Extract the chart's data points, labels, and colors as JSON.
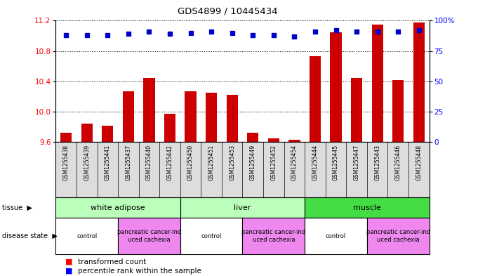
{
  "title": "GDS4899 / 10445434",
  "samples": [
    "GSM1255438",
    "GSM1255439",
    "GSM1255441",
    "GSM1255437",
    "GSM1255440",
    "GSM1255442",
    "GSM1255450",
    "GSM1255451",
    "GSM1255453",
    "GSM1255449",
    "GSM1255452",
    "GSM1255454",
    "GSM1255444",
    "GSM1255445",
    "GSM1255447",
    "GSM1255443",
    "GSM1255446",
    "GSM1255448"
  ],
  "transformed_count": [
    9.72,
    9.84,
    9.82,
    10.27,
    10.45,
    9.97,
    10.27,
    10.25,
    10.22,
    9.72,
    9.65,
    9.63,
    10.73,
    11.05,
    10.45,
    11.15,
    10.42,
    11.18
  ],
  "percentile_rank": [
    88,
    88,
    88,
    89,
    91,
    89,
    90,
    91,
    90,
    88,
    88,
    87,
    91,
    92,
    91,
    91,
    91,
    92
  ],
  "ylim_left": [
    9.6,
    11.2
  ],
  "ylim_right": [
    0,
    100
  ],
  "yticks_left": [
    9.6,
    10.0,
    10.4,
    10.8,
    11.2
  ],
  "yticks_right": [
    0,
    25,
    50,
    75,
    100
  ],
  "bar_color": "#cc0000",
  "dot_color": "#0000cc",
  "tissue_labels": [
    "white adipose",
    "liver",
    "muscle"
  ],
  "tissue_ranges": [
    [
      0,
      6
    ],
    [
      6,
      12
    ],
    [
      12,
      18
    ]
  ],
  "tissue_colors": [
    "#bbffbb",
    "#bbffbb",
    "#44dd44"
  ],
  "disease_ranges": [
    [
      0,
      3
    ],
    [
      3,
      6
    ],
    [
      6,
      9
    ],
    [
      9,
      12
    ],
    [
      12,
      15
    ],
    [
      15,
      18
    ]
  ],
  "disease_labels": [
    "control",
    "pancreatic cancer-ind\nuced cachexia",
    "control",
    "pancreatic cancer-ind\nuced cachexia",
    "control",
    "pancreatic cancer-ind\nuced cachexia"
  ],
  "control_color": "#ffffff",
  "cachexia_color": "#ee88ee",
  "label_bg_color": "#dddddd"
}
